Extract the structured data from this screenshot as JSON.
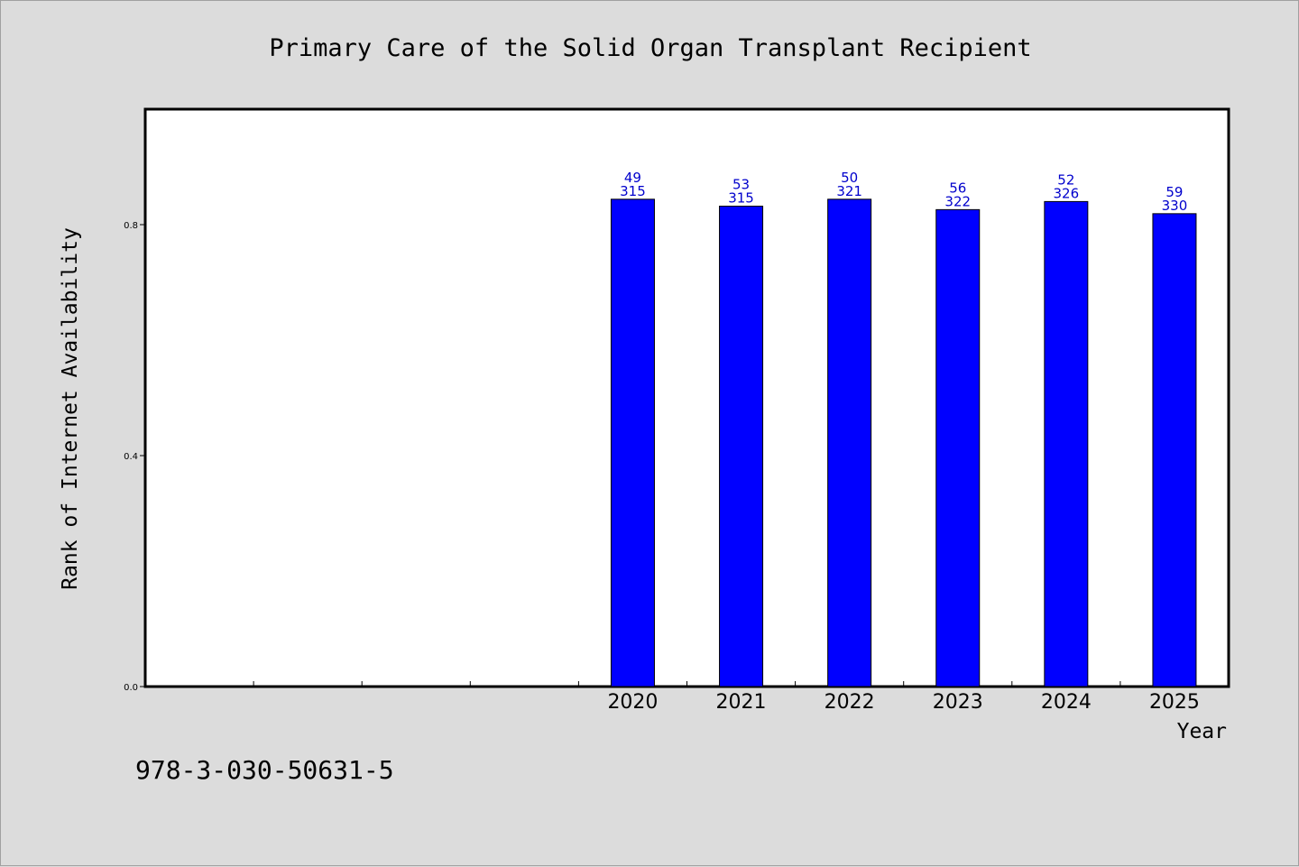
{
  "chart_data": {
    "type": "bar",
    "title": "Primary Care of the Solid Organ Transplant Recipient",
    "xlabel": "Year",
    "ylabel": "Rank of Internet Availability",
    "categories": [
      "2020",
      "2021",
      "2022",
      "2023",
      "2024",
      "2025"
    ],
    "values": [
      0.844,
      0.832,
      0.844,
      0.826,
      0.84,
      0.819
    ],
    "labels_top": [
      "49",
      "53",
      "50",
      "56",
      "52",
      "59"
    ],
    "labels_bottom": [
      "315",
      "315",
      "321",
      "322",
      "326",
      "330"
    ],
    "ylim": [
      0.0,
      1.0
    ],
    "yticks": [
      0.0,
      0.4,
      0.8
    ],
    "ytick_labels": [
      "0.0",
      "0.4",
      "0.8"
    ],
    "x_slots": 10,
    "first_category_slot": 4,
    "bar_color": "#0000ff",
    "label_color": "#0000cc",
    "grid": false,
    "legend": "none"
  },
  "footer": {
    "isbn": "978-3-030-50631-5"
  }
}
